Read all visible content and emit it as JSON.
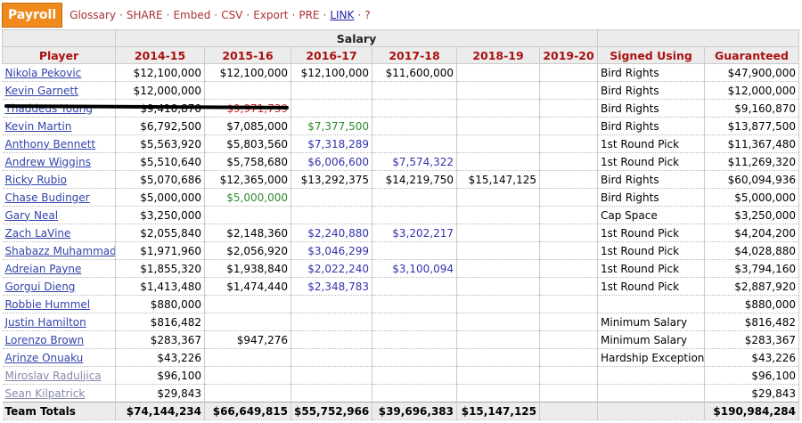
{
  "toolbar": {
    "button": "Payroll",
    "links": [
      "Glossary",
      "SHARE",
      "Embed",
      "CSV",
      "Export",
      "PRE",
      "LINK",
      "?"
    ]
  },
  "table": {
    "group_header": "Salary",
    "columns": [
      "Player",
      "2014-15",
      "2015-16",
      "2016-17",
      "2017-18",
      "2018-19",
      "2019-20",
      "Signed Using",
      "Guaranteed"
    ],
    "rows": [
      {
        "player": "Nikola Pekovic",
        "salaries": [
          "$12,100,000",
          "$12,100,000",
          "$12,100,000",
          "$11,600,000",
          null,
          null
        ],
        "signed_using": "Bird Rights",
        "guaranteed": "$47,900,000"
      },
      {
        "player": "Kevin Garnett",
        "salaries": [
          "$12,000,000",
          null,
          null,
          null,
          null,
          null
        ],
        "signed_using": "Bird Rights",
        "guaranteed": "$12,000,000"
      },
      {
        "player": "Thaddeus Young",
        "struck": true,
        "salaries": [
          "$9,410,870",
          {
            "text": "$9,971,739",
            "color": "#cc2222"
          },
          null,
          null,
          null,
          null
        ],
        "signed_using": "Bird Rights",
        "guaranteed": "$9,160,870"
      },
      {
        "player": "Kevin Martin",
        "salaries": [
          "$6,792,500",
          "$7,085,000",
          {
            "text": "$7,377,500",
            "color": "#2e8b2e"
          },
          null,
          null,
          null
        ],
        "signed_using": "Bird Rights",
        "guaranteed": "$13,877,500"
      },
      {
        "player": "Anthony Bennett",
        "salaries": [
          "$5,563,920",
          "$5,803,560",
          {
            "text": "$7,318,289",
            "color": "#3333aa"
          },
          null,
          null,
          null
        ],
        "signed_using": "1st Round Pick",
        "guaranteed": "$11,367,480"
      },
      {
        "player": "Andrew Wiggins",
        "salaries": [
          "$5,510,640",
          "$5,758,680",
          {
            "text": "$6,006,600",
            "color": "#3333aa"
          },
          {
            "text": "$7,574,322",
            "color": "#3333aa"
          },
          null,
          null
        ],
        "signed_using": "1st Round Pick",
        "guaranteed": "$11,269,320"
      },
      {
        "player": "Ricky Rubio",
        "salaries": [
          "$5,070,686",
          "$12,365,000",
          "$13,292,375",
          "$14,219,750",
          "$15,147,125",
          null
        ],
        "signed_using": "Bird Rights",
        "guaranteed": "$60,094,936"
      },
      {
        "player": "Chase Budinger",
        "salaries": [
          "$5,000,000",
          {
            "text": "$5,000,000",
            "color": "#2e8b2e"
          },
          null,
          null,
          null,
          null
        ],
        "signed_using": "Bird Rights",
        "guaranteed": "$5,000,000"
      },
      {
        "player": "Gary Neal",
        "salaries": [
          "$3,250,000",
          null,
          null,
          null,
          null,
          null
        ],
        "signed_using": "Cap Space",
        "guaranteed": "$3,250,000"
      },
      {
        "player": "Zach LaVine",
        "salaries": [
          "$2,055,840",
          "$2,148,360",
          {
            "text": "$2,240,880",
            "color": "#3333aa"
          },
          {
            "text": "$3,202,217",
            "color": "#3333aa"
          },
          null,
          null
        ],
        "signed_using": "1st Round Pick",
        "guaranteed": "$4,204,200"
      },
      {
        "player": "Shabazz Muhammad",
        "salaries": [
          "$1,971,960",
          "$2,056,920",
          {
            "text": "$3,046,299",
            "color": "#3333aa"
          },
          null,
          null,
          null
        ],
        "signed_using": "1st Round Pick",
        "guaranteed": "$4,028,880"
      },
      {
        "player": "Adreian Payne",
        "salaries": [
          "$1,855,320",
          "$1,938,840",
          {
            "text": "$2,022,240",
            "color": "#3333aa"
          },
          {
            "text": "$3,100,094",
            "color": "#3333aa"
          },
          null,
          null
        ],
        "signed_using": "1st Round Pick",
        "guaranteed": "$3,794,160"
      },
      {
        "player": "Gorgui Dieng",
        "salaries": [
          "$1,413,480",
          "$1,474,440",
          {
            "text": "$2,348,783",
            "color": "#3333aa"
          },
          null,
          null,
          null
        ],
        "signed_using": "1st Round Pick",
        "guaranteed": "$2,887,920"
      },
      {
        "player": "Robbie Hummel",
        "salaries": [
          "$880,000",
          null,
          null,
          null,
          null,
          null
        ],
        "signed_using": null,
        "guaranteed": "$880,000"
      },
      {
        "player": "Justin Hamilton",
        "salaries": [
          "$816,482",
          null,
          null,
          null,
          null,
          null
        ],
        "signed_using": "Minimum Salary",
        "guaranteed": "$816,482"
      },
      {
        "player": "Lorenzo Brown",
        "salaries": [
          "$283,367",
          "$947,276",
          null,
          null,
          null,
          null
        ],
        "signed_using": "Minimum Salary",
        "guaranteed": "$283,367"
      },
      {
        "player": "Arinze Onuaku",
        "salaries": [
          "$43,226",
          null,
          null,
          null,
          null,
          null
        ],
        "signed_using": "Hardship Exception",
        "guaranteed": "$43,226"
      },
      {
        "player": "Miroslav Raduljica",
        "muted": true,
        "salaries": [
          "$96,100",
          null,
          null,
          null,
          null,
          null
        ],
        "signed_using": null,
        "guaranteed": "$96,100"
      },
      {
        "player": "Sean Kilpatrick",
        "muted": true,
        "salaries": [
          "$29,843",
          null,
          null,
          null,
          null,
          null
        ],
        "signed_using": null,
        "guaranteed": "$29,843"
      }
    ],
    "totals": {
      "label": "Team Totals",
      "salaries": [
        "$74,144,234",
        "$66,649,815",
        "$55,752,966",
        "$39,696,383",
        "$15,147,125",
        null
      ],
      "guaranteed": "$190,984,284"
    }
  }
}
